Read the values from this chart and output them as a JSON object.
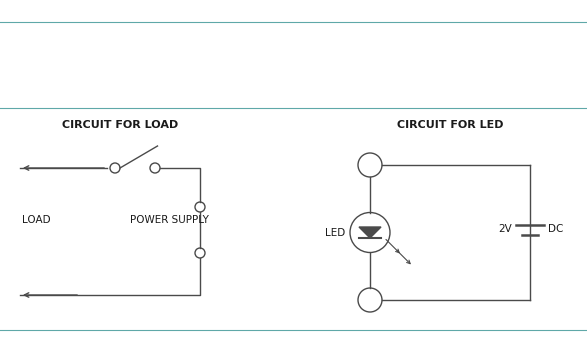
{
  "bg_color": "#ffffff",
  "line_color": "#4a4a4a",
  "text_color": "#1a1a1a",
  "title_load": "CIRCUIT FOR LOAD",
  "title_led": "CIRCUIT FOR LED",
  "label_load": "LOAD",
  "label_ps": "POWER SUPPLY",
  "label_led": "LED",
  "label_2v": "2V",
  "label_dc": "DC",
  "border_color": "#5fa8a8",
  "figsize": [
    5.87,
    3.62
  ],
  "dpi": 100
}
